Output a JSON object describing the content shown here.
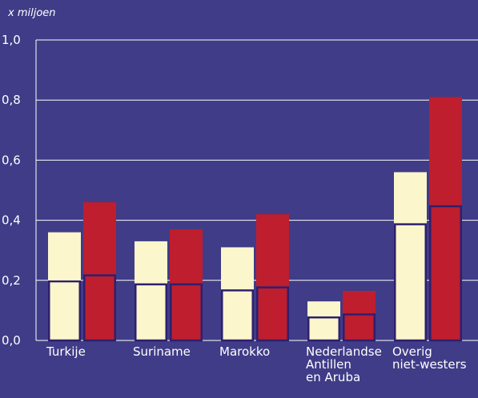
{
  "chart_data": {
    "type": "bar",
    "y_label": "x miljoen",
    "categories": [
      "Turkije",
      "Suriname",
      "Marokko",
      "Nederlandse\nAntillen\nen Aruba",
      "Overig\nniet-westers"
    ],
    "series": [
      {
        "stack": 0,
        "color": "#fbf6cc",
        "outline": "#2e1f6e",
        "values": [
          0.2,
          0.19,
          0.17,
          0.08,
          0.39
        ]
      },
      {
        "stack": 0,
        "color": "#fbf6cc",
        "values": [
          0.16,
          0.14,
          0.14,
          0.05,
          0.17
        ]
      },
      {
        "stack": 1,
        "color": "#be1e2d",
        "outline": "#2e1f6e",
        "values": [
          0.22,
          0.19,
          0.18,
          0.09,
          0.45
        ]
      },
      {
        "stack": 1,
        "color": "#be1e2d",
        "values": [
          0.24,
          0.18,
          0.24,
          0.075,
          0.36
        ]
      }
    ],
    "ylim": [
      0,
      1
    ],
    "yticks": [
      {
        "value": 0,
        "label": "0,0"
      },
      {
        "value": 0.2,
        "label": "0,2"
      },
      {
        "value": 0.4,
        "label": "0,4"
      },
      {
        "value": 0.6,
        "label": "0,6"
      },
      {
        "value": 0.8,
        "label": "0,8"
      },
      {
        "value": 1,
        "label": "1,0"
      }
    ],
    "grid": true
  }
}
